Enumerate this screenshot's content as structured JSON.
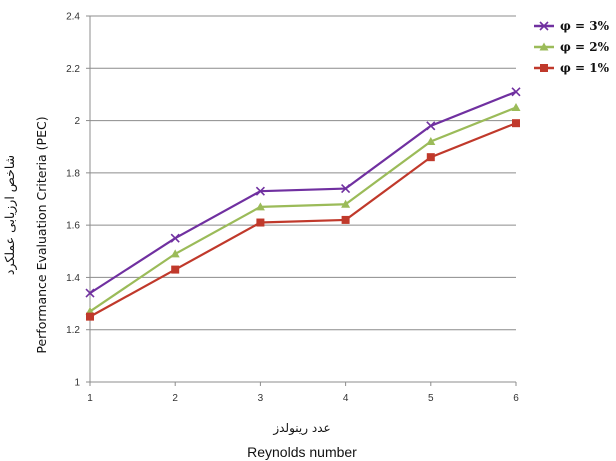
{
  "chart_data": {
    "type": "line",
    "title": "",
    "xlabel_fa": "عدد رینولدز",
    "xlabel": "Reynolds number",
    "ylabel_en": "Performance Evaluation Criteria (PEC)",
    "ylabel_fa": "شاخص ارزیابی عملکرد",
    "x": [
      1,
      2,
      3,
      4,
      5,
      6
    ],
    "x_tick_labels": [
      "1",
      "2",
      "3",
      "4",
      "5",
      "6"
    ],
    "y_tick_labels": [
      "1",
      "1.2",
      "1.4",
      "1.6",
      "1.8",
      "2",
      "2.2",
      "2.4"
    ],
    "ylim": [
      1,
      2.4
    ],
    "grid": "horizontal",
    "legend_position": "top-right",
    "series": [
      {
        "name": "φ = 3%",
        "color": "#7030a0",
        "marker": "x",
        "values": [
          1.34,
          1.55,
          1.73,
          1.74,
          1.98,
          2.11
        ]
      },
      {
        "name": "φ = 2%",
        "color": "#9bbb59",
        "marker": "triangle",
        "values": [
          1.27,
          1.49,
          1.67,
          1.68,
          1.92,
          2.05
        ]
      },
      {
        "name": "φ = 1%",
        "color": "#c0392b",
        "marker": "square",
        "values": [
          1.25,
          1.43,
          1.61,
          1.62,
          1.86,
          1.99
        ]
      }
    ]
  }
}
